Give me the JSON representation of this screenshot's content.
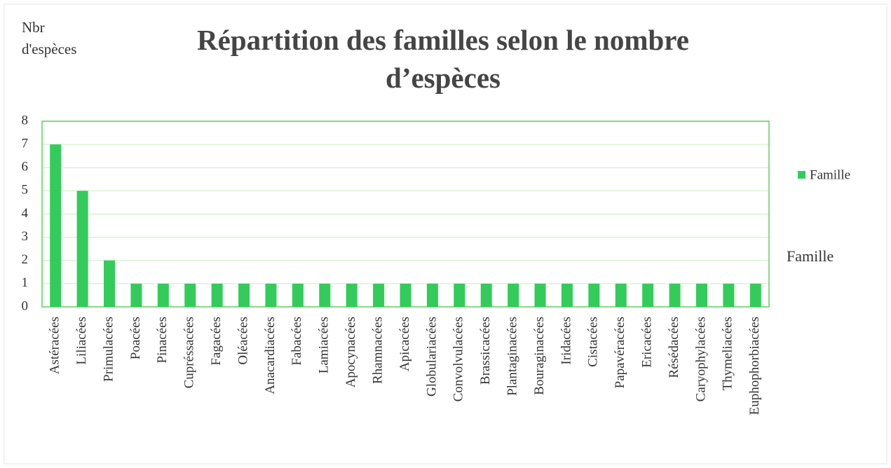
{
  "chart_data": {
    "type": "bar",
    "title": "Répartition des familles selon le nombre d’espèces",
    "y_label": "Nbr d'espèces",
    "x_label": "Famille",
    "categories": [
      "Astéracées",
      "Liliacées",
      "Primulacées",
      "Poacées",
      "Pinacées",
      "Cupréssacées",
      "Fagacées",
      "Oléacées",
      "Anacardiacées",
      "Fabacées",
      "Lamiacées",
      "Apocynacées",
      "Rhamnacées",
      "Apicacées",
      "Globulariacées",
      "Convolvulacées",
      "Brassicacées",
      "Plantaginacées",
      "Bouraginacées",
      "Iridacées",
      "Cistacées",
      "Papavéracées",
      "Ericacées",
      "Résédacées",
      "Caryophylacées",
      "Thymeliacées",
      "Euphophorbiacées"
    ],
    "series": [
      {
        "name": "Famille",
        "color": "#33cc5a",
        "values": [
          7,
          5,
          2,
          1,
          1,
          1,
          1,
          1,
          1,
          1,
          1,
          1,
          1,
          1,
          1,
          1,
          1,
          1,
          1,
          1,
          1,
          1,
          1,
          1,
          1,
          1,
          1
        ]
      }
    ],
    "ylim": [
      0,
      8
    ],
    "yticks": [
      0,
      1,
      2,
      3,
      4,
      5,
      6,
      7,
      8
    ],
    "grid": true,
    "legend": "right"
  }
}
